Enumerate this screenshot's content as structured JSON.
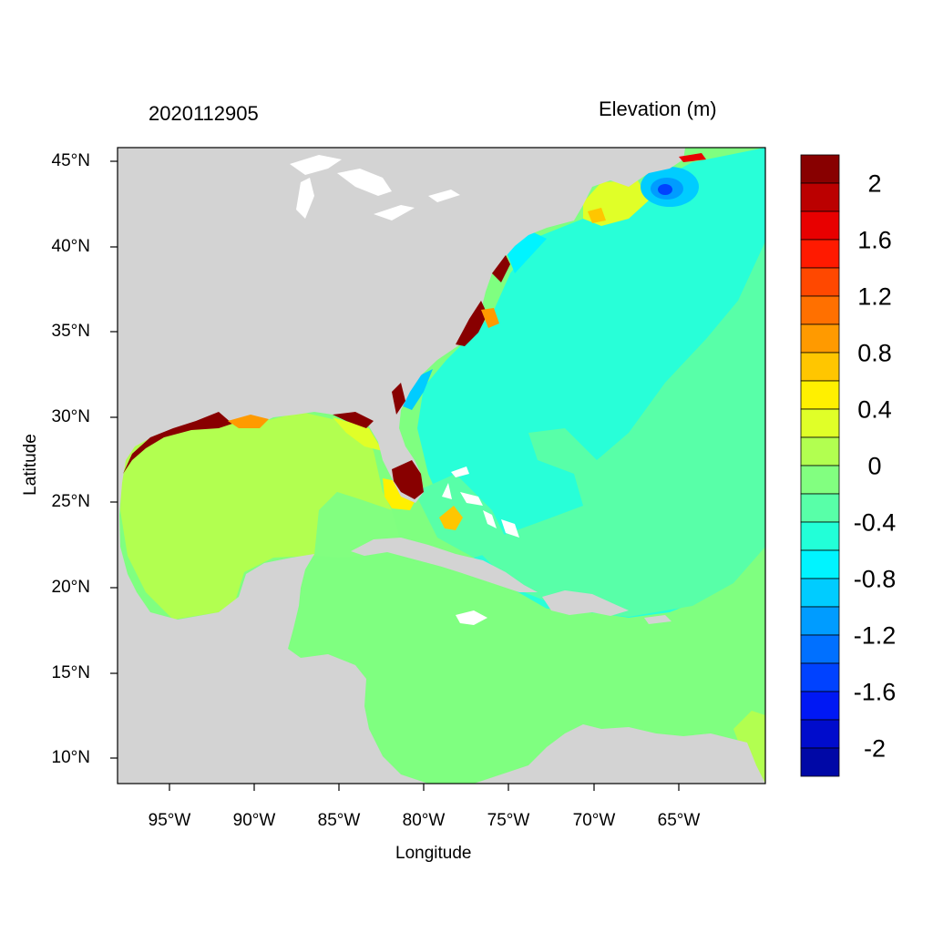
{
  "header": {
    "timestamp": "2020112905",
    "variable": "Elevation (m)"
  },
  "axes": {
    "xlabel": "Longitude",
    "ylabel": "Latitude",
    "xticks": [
      "95°W",
      "90°W",
      "85°W",
      "80°W",
      "75°W",
      "70°W",
      "65°W"
    ],
    "yticks": [
      "45°N",
      "40°N",
      "35°N",
      "30°N",
      "25°N",
      "20°N",
      "15°N",
      "10°N"
    ]
  },
  "colorbar": {
    "labels": [
      "2",
      "1.6",
      "1.2",
      "0.8",
      "0.4",
      "0",
      "-0.4",
      "-0.8",
      "-1.2",
      "-1.6",
      "-2"
    ],
    "colors": [
      "#880000",
      "#bb0000",
      "#e80000",
      "#ff1a00",
      "#ff4800",
      "#ff7000",
      "#ff9a00",
      "#ffc600",
      "#fff000",
      "#e0ff28",
      "#b2ff50",
      "#82ff80",
      "#58ffa8",
      "#22ffd8",
      "#00f4ff",
      "#00ccff",
      "#009cff",
      "#0070ff",
      "#0042ff",
      "#0018f4",
      "#000ccc",
      "#0008a6"
    ]
  },
  "map_colors": {
    "land": "#d3d3d3",
    "lakes": "#ffffff",
    "frame": "#000000"
  }
}
